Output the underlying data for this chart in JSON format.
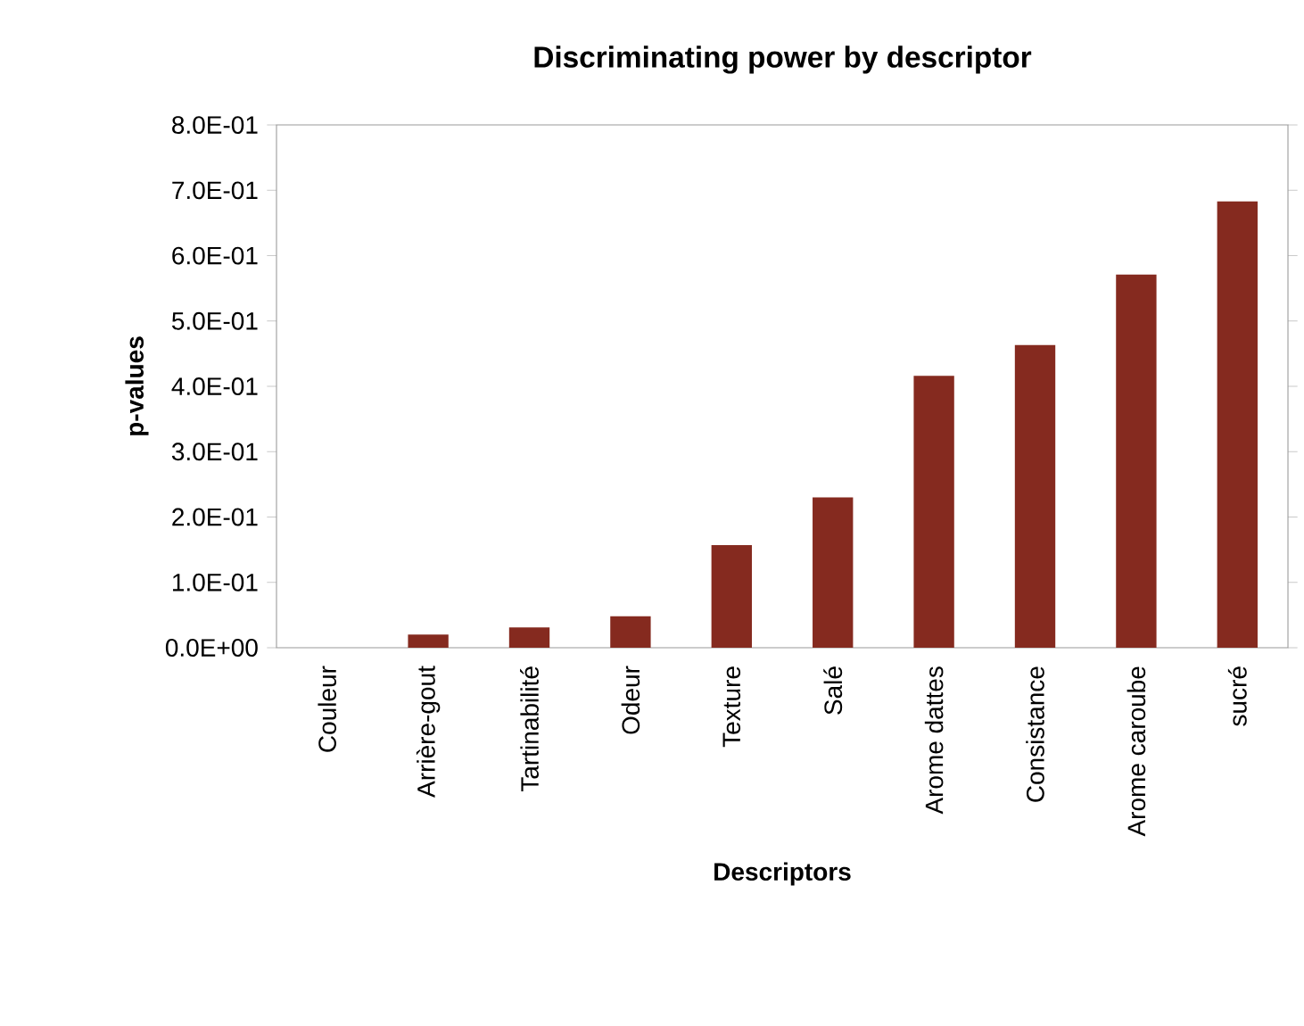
{
  "chart_data": {
    "type": "bar",
    "title": "Discriminating power by descriptor",
    "xlabel": "Descriptors",
    "ylabel": "p-values",
    "categories": [
      "Couleur",
      "Arrière-gout",
      "Tartinabilité",
      "Odeur",
      "Texture",
      "Salé",
      "Arome dattes",
      "Consistance",
      "Arome caroube",
      "sucré"
    ],
    "values": [
      0.0,
      0.02,
      0.031,
      0.048,
      0.157,
      0.23,
      0.416,
      0.463,
      0.571,
      0.683
    ],
    "color": "#852a1f",
    "ylim": [
      0,
      0.8
    ],
    "yticks": [
      {
        "value": 0,
        "label": "0.0E+00"
      },
      {
        "value": 0.1,
        "label": "1.0E-01"
      },
      {
        "value": 0.2,
        "label": "2.0E-01"
      },
      {
        "value": 0.3,
        "label": "3.0E-01"
      },
      {
        "value": 0.4,
        "label": "4.0E-01"
      },
      {
        "value": 0.5,
        "label": "5.0E-01"
      },
      {
        "value": 0.6,
        "label": "6.0E-01"
      },
      {
        "value": 0.7,
        "label": "7.0E-01"
      },
      {
        "value": 0.8,
        "label": "8.0E-01"
      }
    ],
    "grid": false
  }
}
